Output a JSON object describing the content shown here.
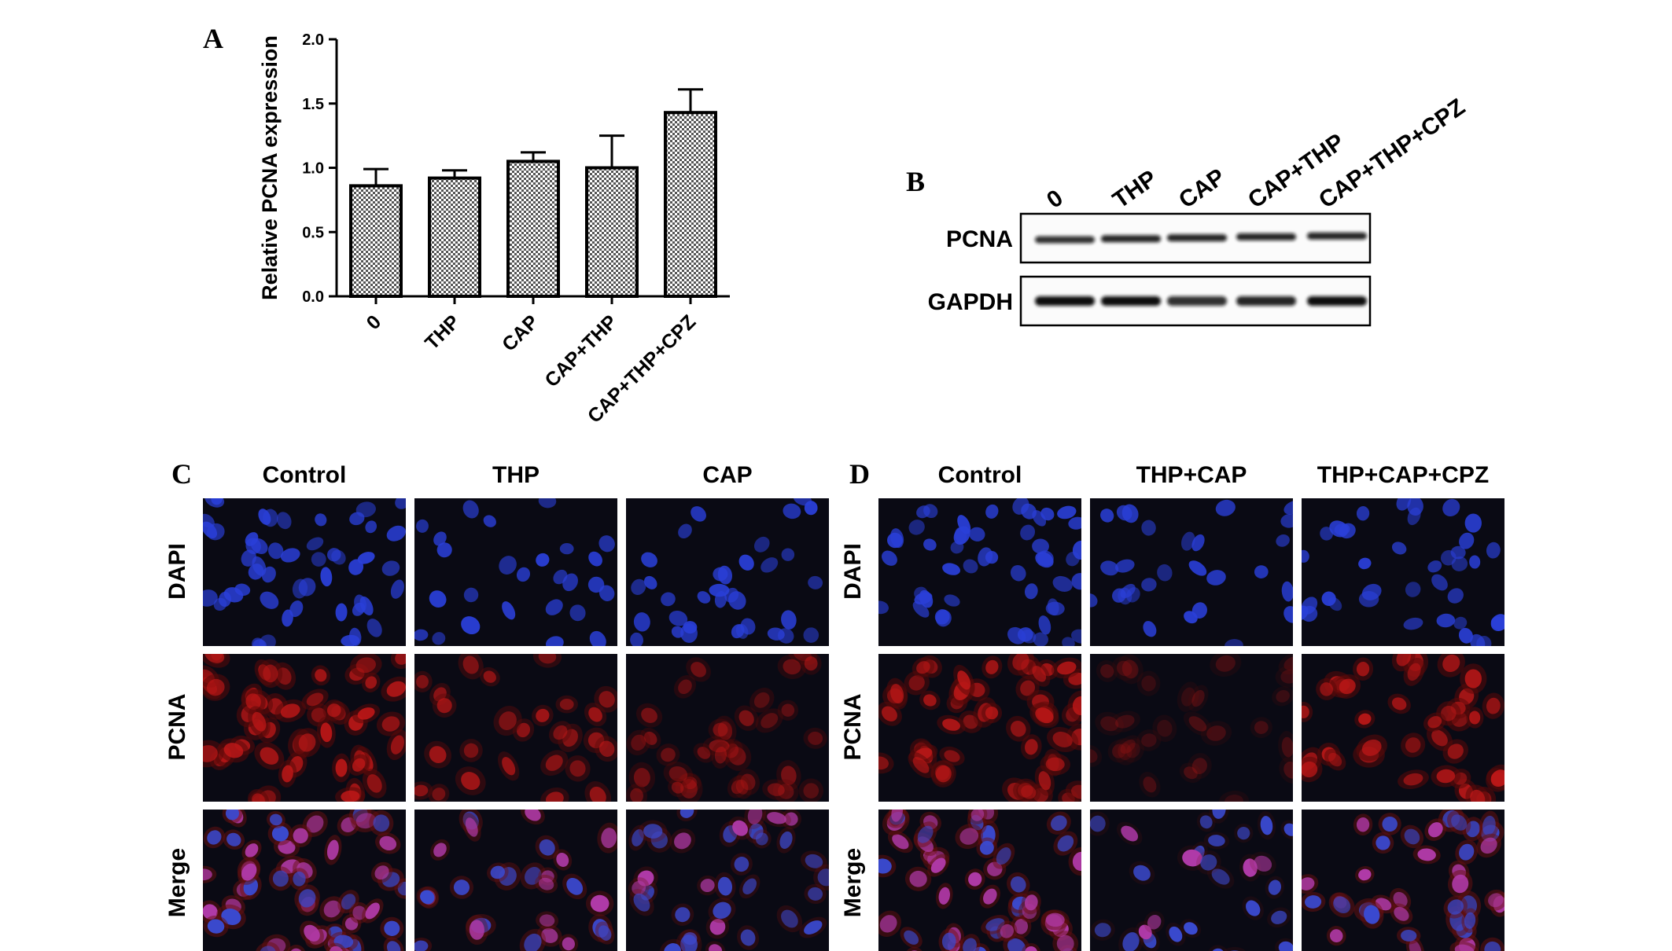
{
  "panels": {
    "a": {
      "letter": "A"
    },
    "b": {
      "letter": "B"
    },
    "c": {
      "letter": "C"
    },
    "d": {
      "letter": "D"
    }
  },
  "chart_data": {
    "type": "bar",
    "title": "",
    "xlabel": "",
    "ylabel": "Relative PCNA expression",
    "categories": [
      "0",
      "THP",
      "CAP",
      "CAP+THP",
      "CAP+THP+CPZ"
    ],
    "values": [
      0.86,
      0.92,
      1.05,
      1.0,
      1.43
    ],
    "error": [
      0.13,
      0.06,
      0.07,
      0.25,
      0.18
    ],
    "ylim": [
      0,
      2.0
    ],
    "yticks": [
      "0.0",
      "0.5",
      "1.0",
      "1.5",
      "2.0"
    ],
    "grid": false,
    "bar_pattern": "checkered"
  },
  "western_blot": {
    "lanes": [
      "0",
      "THP",
      "CAP",
      "CAP+THP",
      "CAP+THP+CPZ"
    ],
    "rows": [
      {
        "label": "PCNA",
        "intensity": [
          0.85,
          0.9,
          0.9,
          0.9,
          0.9
        ]
      },
      {
        "label": "GAPDH",
        "intensity": [
          1.0,
          1.0,
          0.85,
          0.9,
          1.0
        ]
      }
    ]
  },
  "panel_c": {
    "columns": [
      "Control",
      "THP",
      "CAP"
    ],
    "rows": [
      "DAPI",
      "PCNA",
      "Merge"
    ]
  },
  "panel_d": {
    "columns": [
      "Control",
      "THP+CAP",
      "THP+CAP+CPZ"
    ],
    "rows": [
      "DAPI",
      "PCNA",
      "Merge"
    ]
  },
  "colors": {
    "dapi": "#2a3fd8",
    "pcna": "#c01818",
    "merge": "#b03aa8",
    "background": "#0a0a14"
  }
}
